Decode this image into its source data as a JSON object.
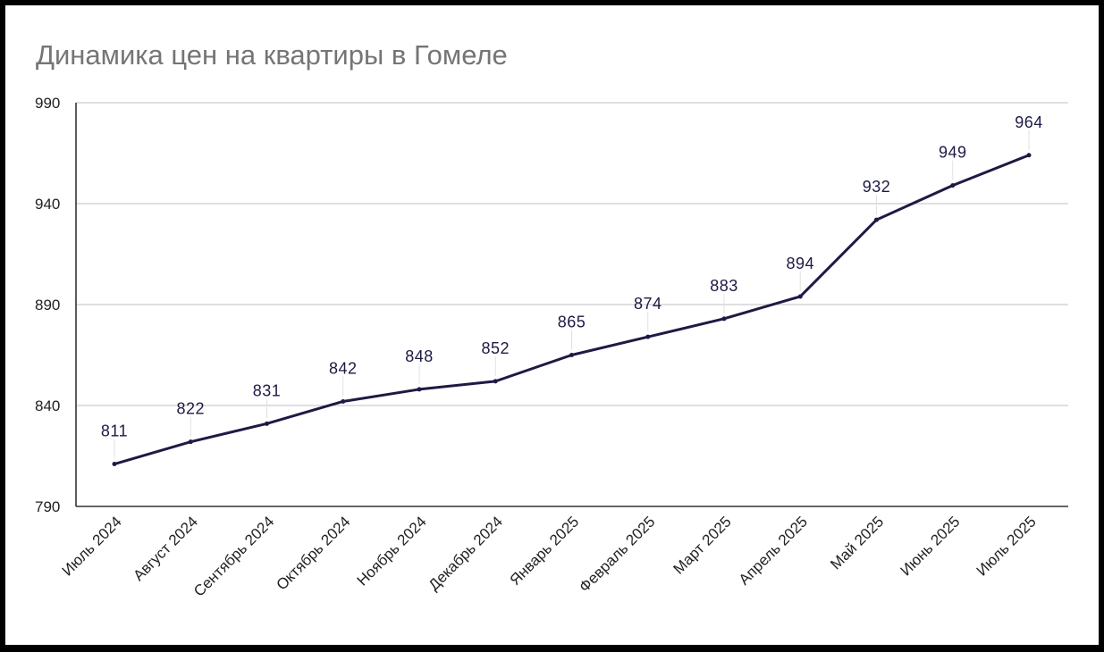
{
  "colors": {
    "frame": "#000000",
    "background": "#ffffff",
    "title": "#757575",
    "series_line": "#1d1a44",
    "gridline": "#cccccc"
  },
  "chart_data": {
    "type": "line",
    "title": "Динамика цен на квартиры в Гомеле",
    "xlabel": "",
    "ylabel": "",
    "categories": [
      "Июль 2024",
      "Август 2024",
      "Сентябрь 2024",
      "Октябрь 2024",
      "Ноябрь 2024",
      "Декабрь 2024",
      "Январь 2025",
      "Февраль 2025",
      "Март 2025",
      "Апрель 2025",
      "Май 2025",
      "Июнь 2025",
      "Июль 2025"
    ],
    "series": [
      {
        "values": [
          811,
          822,
          831,
          842,
          848,
          852,
          865,
          874,
          883,
          894,
          932,
          949,
          964
        ]
      }
    ],
    "ylim": [
      790,
      990
    ],
    "yticks": [
      790,
      840,
      890,
      940,
      990
    ],
    "grid": true,
    "data_labels": true,
    "legend": "none"
  }
}
